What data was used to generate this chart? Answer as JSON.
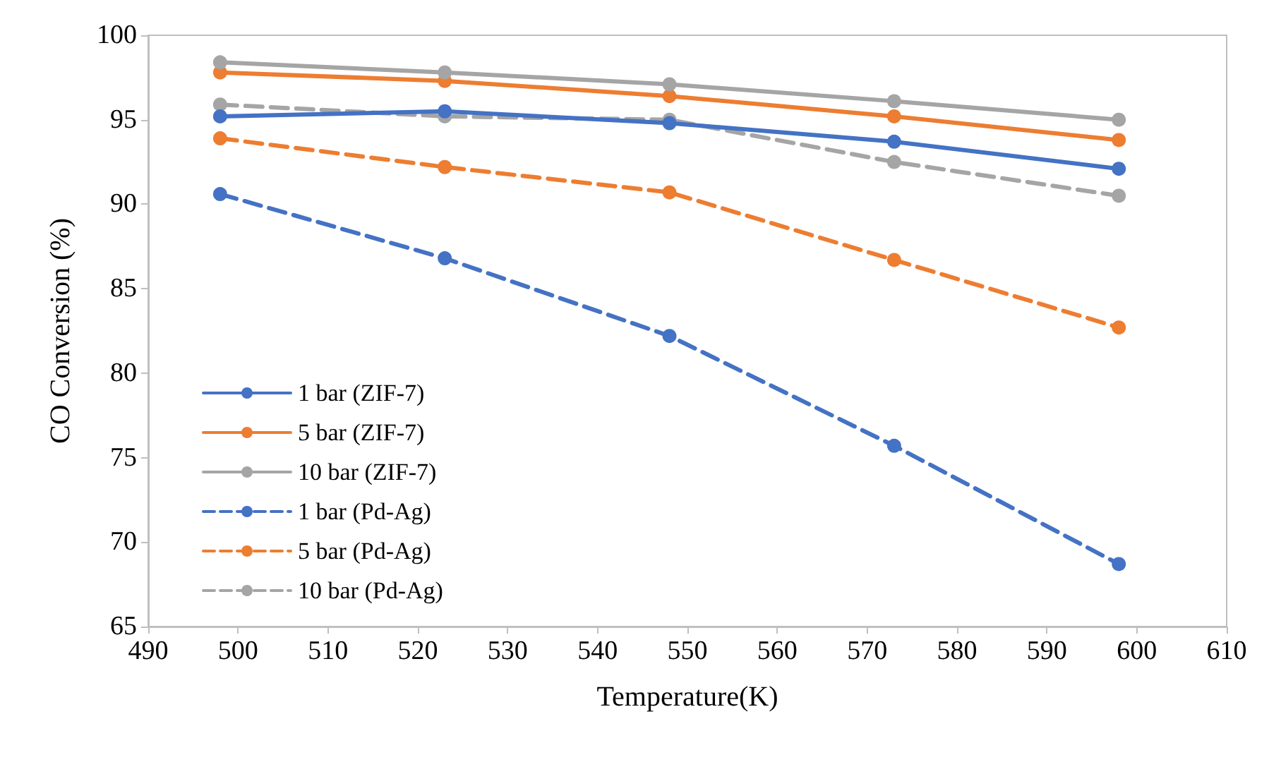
{
  "chart_data": {
    "type": "line",
    "xlabel": "Temperature(K)",
    "ylabel": "CO Conversion (%)",
    "x": [
      498,
      523,
      548,
      573,
      598
    ],
    "xlim": [
      490,
      610
    ],
    "xticks": [
      490,
      500,
      510,
      520,
      530,
      540,
      550,
      560,
      570,
      580,
      590,
      600,
      610
    ],
    "ylim": [
      65,
      100
    ],
    "yticks": [
      65,
      70,
      75,
      80,
      85,
      90,
      95,
      100
    ],
    "grid": false,
    "legend": "bottom left",
    "marker": "circle",
    "series": [
      {
        "name": "1 bar (ZIF-7)",
        "color": "#4472c4",
        "line_style": "solid",
        "values": [
          95.2,
          95.5,
          94.8,
          93.7,
          92.1
        ]
      },
      {
        "name": "5 bar (ZIF-7)",
        "color": "#ed7d31",
        "line_style": "solid",
        "values": [
          97.8,
          97.3,
          96.4,
          95.2,
          93.8
        ]
      },
      {
        "name": "10 bar (ZIF-7)",
        "color": "#a5a5a5",
        "line_style": "solid",
        "values": [
          98.4,
          97.8,
          97.1,
          96.1,
          95.0
        ]
      },
      {
        "name": "1 bar (Pd-Ag)",
        "color": "#4472c4",
        "line_style": "dashed",
        "values": [
          90.6,
          86.8,
          82.2,
          75.7,
          68.7
        ]
      },
      {
        "name": "5 bar (Pd-Ag)",
        "color": "#ed7d31",
        "line_style": "dashed",
        "values": [
          93.9,
          92.2,
          90.7,
          86.7,
          82.7
        ]
      },
      {
        "name": "10 bar (Pd-Ag)",
        "color": "#a5a5a5",
        "line_style": "dashed",
        "values": [
          95.9,
          95.2,
          95.0,
          92.5,
          90.5
        ]
      }
    ]
  }
}
